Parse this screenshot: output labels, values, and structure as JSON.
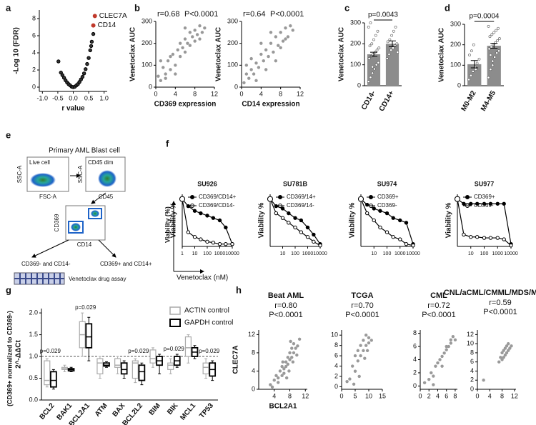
{
  "chart_data": [
    {
      "type": "scatter",
      "panel": "a",
      "xlabel": "r value",
      "ylabel": "-Log 10 (FDR)",
      "x": [
        -0.48,
        -0.4,
        -0.35,
        -0.3,
        -0.25,
        -0.2,
        -0.15,
        -0.1,
        -0.05,
        0,
        0.05,
        0.1,
        0.15,
        0.2,
        0.25,
        0.3,
        0.35,
        0.4,
        0.45,
        0.5,
        0.55,
        0.6,
        0.65,
        0.58
      ],
      "values": [
        3.0,
        1.7,
        1.4,
        1.1,
        0.8,
        0.55,
        0.35,
        0.2,
        0.05,
        0,
        0.05,
        0.2,
        0.35,
        0.6,
        0.9,
        1.2,
        1.6,
        2.1,
        2.7,
        3.4,
        4.3,
        5.3,
        6.2,
        4.8
      ],
      "color": "#333333",
      "highlights": [
        {
          "label": "CLEC7A",
          "x": 0.7,
          "y": 8.3,
          "color": "#c0392b"
        },
        {
          "label": "CD14",
          "x": 0.65,
          "y": 7.2,
          "color": "#c0392b"
        }
      ],
      "xlim": [
        -1.1,
        1.1
      ],
      "ylim": [
        -0.5,
        9
      ],
      "xticks": [
        {
          "value": -1,
          "label": "-1.0"
        },
        {
          "value": -0.5,
          "label": "-0.5"
        },
        {
          "value": 0,
          "label": "0.0"
        },
        {
          "value": 0.5,
          "label": "0.5"
        },
        {
          "value": 1,
          "label": "1.0"
        }
      ],
      "yticks": [
        0,
        2,
        4,
        6,
        8
      ]
    },
    {
      "type": "scatter",
      "panel": "b",
      "xlabel": "CD369 expression",
      "ylabel": "Venetoclax AUC",
      "annotations": [
        "r=0.68",
        "P<0.0001"
      ],
      "x": [
        0.5,
        1,
        1.5,
        2,
        2.5,
        3,
        3.5,
        4,
        4.5,
        5,
        5,
        5.5,
        6,
        6,
        6.5,
        7,
        7,
        7.5,
        8,
        8,
        8.5,
        9,
        9,
        9.5,
        10,
        1,
        2,
        3,
        4,
        6
      ],
      "values": [
        50,
        30,
        90,
        60,
        120,
        80,
        150,
        100,
        170,
        140,
        200,
        180,
        160,
        220,
        200,
        250,
        190,
        230,
        260,
        210,
        240,
        280,
        220,
        250,
        270,
        120,
        40,
        140,
        60,
        270
      ],
      "color": "#999999",
      "xlim": [
        0,
        12
      ],
      "ylim": [
        0,
        300
      ],
      "xticks": [
        0,
        4,
        8,
        12
      ],
      "yticks": [
        0,
        100,
        200,
        300
      ]
    },
    {
      "type": "scatter",
      "xlabel": "CD14 expression",
      "ylabel": "Venetoclax AUC",
      "annotations": [
        "r=0.64",
        "P<0.0001"
      ],
      "x": [
        0.5,
        1,
        1.5,
        2,
        2.5,
        3,
        3.5,
        4,
        4.5,
        5,
        5.5,
        6,
        6.5,
        7,
        7.5,
        8,
        8.5,
        9,
        9.5,
        10,
        10.5,
        2,
        3,
        6,
        8,
        4,
        7,
        9,
        5,
        1
      ],
      "values": [
        20,
        60,
        40,
        80,
        60,
        110,
        90,
        150,
        120,
        170,
        140,
        200,
        160,
        230,
        190,
        250,
        210,
        270,
        230,
        280,
        260,
        130,
        30,
        250,
        180,
        200,
        120,
        220,
        80,
        100
      ],
      "color": "#999999",
      "xlim": [
        0,
        12
      ],
      "ylim": [
        0,
        300
      ],
      "xticks": [
        0,
        4,
        8,
        12
      ],
      "yticks": [
        0,
        100,
        200,
        300
      ]
    },
    {
      "type": "bar",
      "panel": "c",
      "ylabel": "Venetoclax AUC",
      "annotation": "p=0.0043",
      "categories": [
        "CD14-",
        "CD14+"
      ],
      "values": [
        150,
        200
      ],
      "errors": [
        10,
        14
      ],
      "color": "#8c8c8c",
      "points": [
        [
          20,
          40,
          60,
          80,
          100,
          110,
          130,
          140,
          150,
          160,
          170,
          180,
          190,
          200,
          220,
          240,
          260,
          280,
          300,
          90
        ],
        [
          130,
          150,
          170,
          180,
          190,
          200,
          210,
          220,
          240,
          260,
          280,
          160
        ]
      ],
      "ylim": [
        0,
        300
      ],
      "yticks": [
        0,
        100,
        200,
        300
      ]
    },
    {
      "type": "bar",
      "panel": "d",
      "ylabel": "Venetoclax AUC",
      "annotation": "p=0.0004",
      "categories": [
        "M0-M2",
        "M4-M5"
      ],
      "values": [
        105,
        195
      ],
      "errors": [
        18,
        12
      ],
      "color": "#8c8c8c",
      "points": [
        [
          30,
          50,
          70,
          90,
          110,
          130,
          150,
          170,
          200,
          80
        ],
        [
          40,
          80,
          120,
          140,
          160,
          170,
          180,
          190,
          200,
          210,
          220,
          230,
          240,
          250,
          260,
          270,
          280,
          290,
          150,
          100
        ]
      ],
      "ylim": [
        0,
        300
      ],
      "yticks": [
        0,
        100,
        200,
        300
      ]
    },
    {
      "type": "line",
      "panel": "f",
      "title": "SU926",
      "ylabel": "Viability %",
      "ylabel2": "Viability (%)",
      "xlabel": "Venetoclax (nM)",
      "xscale": "log",
      "x": [
        1,
        3,
        10,
        30,
        100,
        300,
        1000,
        3000,
        10000
      ],
      "series": [
        {
          "name": "CD369/CD14+",
          "color": "#000000",
          "marker": "filled",
          "values": [
            100,
            85,
            75,
            70,
            65,
            60,
            55,
            40,
            5
          ]
        },
        {
          "name": "CD369/CD14-",
          "color": "#000000",
          "marker": "open",
          "values": [
            100,
            30,
            20,
            15,
            10,
            8,
            5,
            5,
            5
          ]
        }
      ],
      "xlim": [
        1,
        10000
      ],
      "ylim": [
        0,
        110
      ],
      "xticks": [
        1,
        10,
        100,
        1000,
        10000
      ]
    },
    {
      "type": "line",
      "title": "SU781B",
      "ylabel": "Viability %",
      "xscale": "log",
      "x": [
        1,
        3,
        10,
        30,
        100,
        300,
        1000,
        3000,
        10000
      ],
      "series": [
        {
          "name": "CD369/14+",
          "color": "#000000",
          "marker": "filled",
          "values": [
            100,
            85,
            80,
            70,
            60,
            55,
            40,
            25,
            5
          ]
        },
        {
          "name": "CD369/14-",
          "color": "#000000",
          "marker": "open",
          "values": [
            100,
            70,
            60,
            50,
            40,
            30,
            20,
            10,
            2
          ]
        }
      ],
      "xlim": [
        1,
        10000
      ],
      "ylim": [
        0,
        110
      ],
      "xticks": [
        10,
        100,
        1000,
        10000
      ]
    },
    {
      "type": "line",
      "title": "SU974",
      "ylabel": "Viability %",
      "xscale": "log",
      "x": [
        1,
        3,
        10,
        30,
        100,
        300,
        1000,
        3000,
        10000
      ],
      "series": [
        {
          "name": "CD369+",
          "color": "#000000",
          "marker": "filled",
          "values": [
            100,
            88,
            80,
            75,
            70,
            60,
            55,
            50,
            5
          ]
        },
        {
          "name": "CD369-",
          "color": "#000000",
          "marker": "open",
          "values": [
            100,
            70,
            55,
            40,
            30,
            20,
            15,
            5,
            2
          ]
        }
      ],
      "xlim": [
        1,
        10000
      ],
      "ylim": [
        0,
        110
      ],
      "xticks": [
        10,
        100,
        1000,
        10000
      ]
    },
    {
      "type": "line",
      "title": "SU977",
      "ylabel": "Viability %",
      "xscale": "log",
      "x": [
        1,
        3,
        10,
        30,
        100,
        300,
        1000,
        3000,
        10000
      ],
      "series": [
        {
          "name": "CD369+",
          "color": "#000000",
          "marker": "filled",
          "values": [
            100,
            90,
            90,
            90,
            90,
            90,
            90,
            90,
            5
          ]
        },
        {
          "name": "CD369-",
          "color": "#000000",
          "marker": "open",
          "values": [
            100,
            25,
            20,
            20,
            18,
            18,
            18,
            15,
            2
          ]
        }
      ],
      "xlim": [
        1,
        10000
      ],
      "ylim": [
        0,
        110
      ],
      "xticks": [
        10,
        100,
        1000,
        10000
      ]
    },
    {
      "type": "box",
      "panel": "g",
      "ylabel": "2^-ΔΔCt",
      "ylabel2": "(CD369+ normalized to CD369-)",
      "categories": [
        "BCL2",
        "BAK1",
        "BCL2A1",
        "ATM",
        "BAX",
        "BCL2L2",
        "BIM",
        "BIK",
        "MCL1",
        "TP53"
      ],
      "p_values": [
        "p=0.029",
        null,
        "p=0.029",
        null,
        null,
        "p=0.029",
        null,
        "p=0.029",
        null,
        "p=0.029"
      ],
      "refline": 1,
      "series": [
        {
          "name": "ACTIN control",
          "color": "#aaaaaa",
          "min": [
            0.3,
            0.65,
            1.0,
            0.5,
            0.6,
            0.4,
            0.75,
            0.6,
            0.85,
            0.5
          ],
          "q1": [
            0.35,
            0.7,
            1.2,
            0.6,
            0.75,
            0.5,
            0.85,
            0.7,
            1.0,
            0.6
          ],
          "median": [
            0.45,
            0.72,
            1.5,
            0.85,
            0.8,
            0.85,
            0.95,
            0.8,
            1.2,
            0.75
          ],
          "q3": [
            0.9,
            0.75,
            1.8,
            0.95,
            0.95,
            0.9,
            1.15,
            0.85,
            1.45,
            0.85
          ],
          "max": [
            0.95,
            0.8,
            2.0,
            1.0,
            1.0,
            0.95,
            1.2,
            0.95,
            1.5,
            0.95
          ]
        },
        {
          "name": "GAPDH control",
          "color": "#000000",
          "min": [
            0.25,
            0.65,
            0.9,
            0.75,
            0.5,
            0.35,
            0.6,
            0.75,
            0.95,
            0.45
          ],
          "q1": [
            0.3,
            0.67,
            1.2,
            0.78,
            0.6,
            0.45,
            0.8,
            0.8,
            1.0,
            0.55
          ],
          "median": [
            0.45,
            0.7,
            1.45,
            0.8,
            0.7,
            0.65,
            0.9,
            0.9,
            1.1,
            0.7
          ],
          "q3": [
            0.65,
            0.72,
            1.75,
            0.85,
            0.85,
            0.8,
            1.0,
            1.0,
            1.2,
            0.85
          ],
          "max": [
            0.7,
            0.75,
            1.9,
            0.88,
            0.9,
            0.85,
            1.05,
            1.05,
            1.25,
            0.9
          ]
        }
      ],
      "ylim": [
        0,
        2.1
      ],
      "yticks": [
        {
          "value": 0,
          "label": "0.0"
        },
        {
          "value": 0.5,
          "label": "0.5"
        },
        {
          "value": 1,
          "label": "1.0"
        },
        {
          "value": 1.5,
          "label": "1.5"
        },
        {
          "value": 2,
          "label": "2.0"
        }
      ]
    },
    {
      "type": "scatter",
      "panel": "h",
      "title": "Beat AML",
      "annotations": [
        "r=0.80",
        "P<0.0001"
      ],
      "xlabel": "BCL2A1",
      "ylabel": "CLEC7A",
      "x": [
        3,
        4,
        4.5,
        5,
        5.5,
        6,
        6,
        6.5,
        7,
        7,
        7.5,
        7.5,
        8,
        8,
        8.5,
        8.5,
        9,
        9,
        9.5,
        10,
        10.5,
        5,
        6.5,
        7.8,
        8.8,
        3.5,
        9.8,
        7.2,
        6.2,
        8.2
      ],
      "values": [
        1,
        2,
        3,
        2.5,
        4,
        3,
        5,
        4.5,
        5,
        6,
        5.5,
        7,
        6.5,
        8,
        7,
        9,
        8,
        10,
        9,
        9.5,
        11,
        1.5,
        3.5,
        4,
        6,
        0.5,
        7.5,
        2.5,
        6,
        10.5
      ],
      "color": "#9a9a9a",
      "xlim": [
        0,
        12.5
      ],
      "ylim": [
        0,
        13
      ],
      "xticks": [
        4,
        8,
        12
      ],
      "yticks": [
        0,
        4,
        8,
        12
      ]
    },
    {
      "type": "scatter",
      "title": "TCGA",
      "annotations": [
        "r=0.70",
        "P<0.0001"
      ],
      "x": [
        2,
        3,
        4,
        5,
        5,
        6,
        6,
        7,
        7,
        8,
        8,
        9,
        9,
        10,
        10,
        11,
        6.5,
        8.5,
        4.5,
        9.5
      ],
      "values": [
        1,
        1.5,
        4,
        3,
        6,
        5,
        7,
        6,
        8,
        7,
        9,
        8,
        10,
        8.5,
        9.5,
        9,
        2,
        5.5,
        0.5,
        7
      ],
      "color": "#9a9a9a",
      "xlim": [
        0,
        15
      ],
      "ylim": [
        -0.5,
        11
      ],
      "xticks": [
        0,
        5,
        10,
        15
      ],
      "yticks": [
        0,
        2,
        4,
        6,
        8,
        10
      ]
    },
    {
      "type": "scatter",
      "title": "CML",
      "annotations": [
        "r=0.72",
        "P<0.0001"
      ],
      "x": [
        1,
        2,
        2.5,
        3,
        3.5,
        4,
        4.5,
        5,
        5.5,
        6,
        6,
        6.5,
        7,
        7,
        7.5,
        8,
        3,
        5
      ],
      "values": [
        0.5,
        1,
        2,
        1.5,
        3,
        3.5,
        4,
        4.5,
        5,
        5.5,
        6,
        6,
        6.5,
        7,
        7.5,
        7,
        0.2,
        3
      ],
      "color": "#9a9a9a",
      "xlim": [
        0,
        8.5
      ],
      "ylim": [
        -0.5,
        8.5
      ],
      "xticks": [
        0,
        2,
        4,
        6,
        8
      ],
      "yticks": [
        0,
        2,
        4,
        6,
        8
      ]
    },
    {
      "type": "scatter",
      "title": "CNL/aCML/CMML/MDS/MPN-U",
      "annotations": [
        "r=0.59",
        "P<0.0001"
      ],
      "x": [
        2,
        7,
        7.5,
        8,
        8,
        8.5,
        8.5,
        9,
        9,
        9.5,
        9.5,
        10,
        10,
        10.5,
        11
      ],
      "values": [
        2,
        6,
        7,
        6.5,
        8,
        7,
        8.5,
        7.5,
        9,
        8,
        9.5,
        8.5,
        10,
        9,
        9.5
      ],
      "color": "#9a9a9a",
      "xlim": [
        0,
        12.5
      ],
      "ylim": [
        0,
        13
      ],
      "xticks": [
        0,
        4,
        8,
        12
      ],
      "yticks": [
        0,
        2,
        4,
        6,
        8,
        10,
        12
      ]
    }
  ],
  "diagram_e": {
    "panel": "e",
    "title": "Primary AML Blast cell",
    "gate1": "Live cell",
    "gate2": "CD45 dim",
    "axis1_y": "SSC-A",
    "axis1_x": "FSC-A",
    "axis2_y": "SSC-A",
    "axis2_x": "CD45",
    "axis3_y": "CD369",
    "axis3_x": "CD14",
    "neg_group": "CD369- and CD14-",
    "pos_group": "CD369+ and CD14+",
    "assay": "Venetoclax drug assay"
  }
}
